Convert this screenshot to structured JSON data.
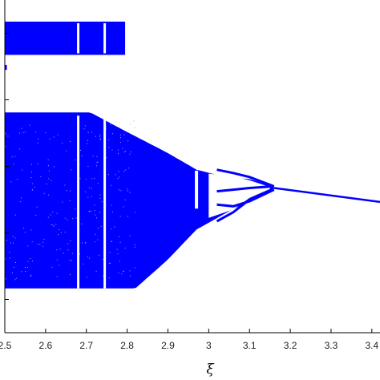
{
  "chart_data": {
    "type": "scatter",
    "title": "",
    "xlabel": "ξ",
    "ylabel": "",
    "xlim": [
      2.5,
      3.42
    ],
    "ylim": [
      0,
      1
    ],
    "x_ticks": [
      "2.5",
      "2.6",
      "2.7",
      "2.8",
      "2.9",
      "3",
      "3.1",
      "3.2",
      "3.3",
      "3.4"
    ],
    "x_tick_values": [
      2.5,
      2.6,
      2.7,
      2.8,
      2.9,
      3.0,
      3.1,
      3.2,
      3.3,
      3.4
    ],
    "grid": false,
    "marker_color": "#0000ff",
    "description_of_data": [],
    "regions": {
      "upper_band": {
        "x": [
          2.5,
          2.795
        ],
        "y": [
          0.835,
          0.935
        ]
      },
      "isolated_points": {
        "x": [
          2.5,
          2.505
        ],
        "y": [
          0.79,
          0.805
        ]
      },
      "main_band": {
        "x_start": 2.5,
        "x_flat_end": 2.71,
        "y_low": 0.133,
        "y_high": 0.662
      },
      "upper_envelope": {
        "x": [
          2.71,
          2.8,
          2.9,
          2.97,
          3.05,
          3.1,
          3.16
        ],
        "y": [
          0.662,
          0.603,
          0.54,
          0.49,
          0.465,
          0.462,
          0.44
        ]
      },
      "lower_envelope": {
        "x": [
          2.82,
          2.9,
          2.97,
          3.05,
          3.1,
          3.16
        ],
        "y": [
          0.133,
          0.22,
          0.31,
          0.365,
          0.395,
          0.43
        ]
      },
      "windows": [
        {
          "x": 2.68,
          "extends_into_upper_band": true
        },
        {
          "x": 2.745,
          "extends_into_upper_band": true
        }
      ],
      "period_window": {
        "x": 2.97,
        "y_gap": [
          0.373,
          0.487
        ]
      },
      "period4_branches": [
        {
          "x": [
            3.02,
            3.06,
            3.1,
            3.16
          ],
          "y": [
            0.49,
            0.48,
            0.468,
            0.44
          ]
        },
        {
          "x": [
            3.02,
            3.06,
            3.1,
            3.16
          ],
          "y": [
            0.425,
            0.43,
            0.435,
            0.44
          ]
        },
        {
          "x": [
            3.02,
            3.06,
            3.1,
            3.16
          ],
          "y": [
            0.385,
            0.38,
            0.395,
            0.43
          ]
        },
        {
          "x": [
            3.02,
            3.06,
            3.1,
            3.16
          ],
          "y": [
            0.335,
            0.362,
            0.4,
            0.43
          ]
        }
      ],
      "period1_line": {
        "x": [
          3.16,
          3.42
        ],
        "y": [
          0.435,
          0.393
        ]
      }
    }
  }
}
